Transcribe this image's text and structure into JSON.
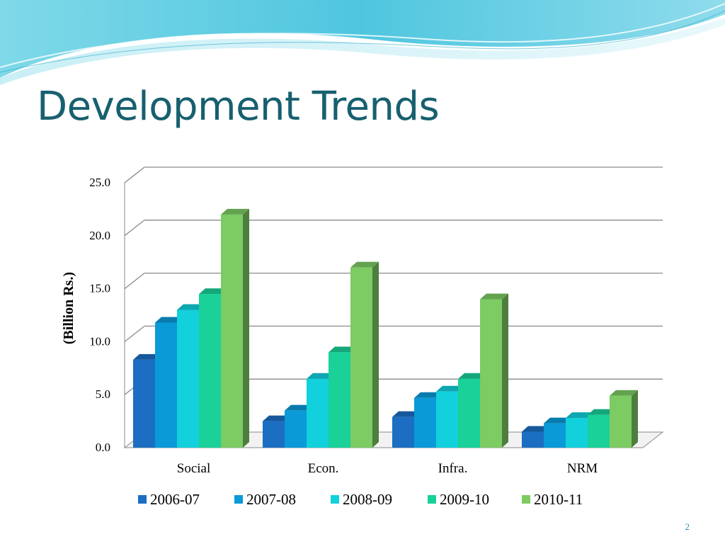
{
  "slide": {
    "title": "Development Trends",
    "page_number": "2"
  },
  "chart_data": {
    "type": "bar",
    "title": "",
    "xlabel": "",
    "ylabel": "(Billion Rs.)",
    "ylim": [
      0,
      25
    ],
    "yticks": [
      "0.0",
      "5.0",
      "10.0",
      "15.0",
      "20.0",
      "25.0"
    ],
    "grid": true,
    "legend_position": "bottom",
    "categories": [
      "Social",
      "Econ.",
      "Infra.",
      "NRM"
    ],
    "series": [
      {
        "name": "2006-07",
        "color": "#1b6ec2",
        "values": [
          8.3,
          2.5,
          2.9,
          1.5
        ]
      },
      {
        "name": "2007-08",
        "color": "#0a9ad8",
        "values": [
          11.8,
          3.5,
          4.7,
          2.3
        ]
      },
      {
        "name": "2008-09",
        "color": "#12d0dc",
        "values": [
          13.0,
          6.5,
          5.3,
          2.8
        ]
      },
      {
        "name": "2009-10",
        "color": "#19d199",
        "values": [
          14.5,
          9.0,
          6.5,
          3.1
        ]
      },
      {
        "name": "2010-11",
        "color": "#7ccb63",
        "values": [
          22.0,
          17.0,
          14.0,
          4.9
        ]
      }
    ]
  }
}
